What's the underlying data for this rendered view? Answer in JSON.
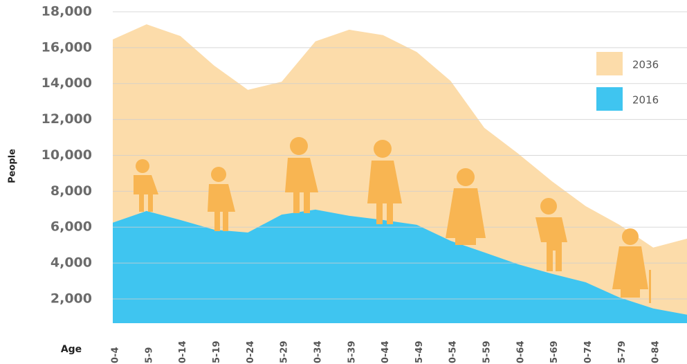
{
  "chart_data": {
    "type": "area",
    "x_label": "Age",
    "y_label": "People",
    "categories": [
      "0-4",
      "5-9",
      "0-14",
      "5-19",
      "0-24",
      "5-29",
      "0-34",
      "5-39",
      "0-44",
      "5-49",
      "0-54",
      "5-59",
      "0-64",
      "5-69",
      "0-74",
      "5-79",
      "0-84",
      null
    ],
    "series": [
      {
        "name": "2036",
        "color": "#fcdcaa",
        "values": [
          16460,
          17300,
          16650,
          15000,
          13650,
          14100,
          16350,
          17000,
          16700,
          15760,
          14150,
          11530,
          10100,
          8560,
          7170,
          6130,
          4860,
          5360
        ]
      },
      {
        "name": "2016",
        "color": "#3fc5f0",
        "values": [
          6250,
          6900,
          6400,
          5860,
          5700,
          6700,
          6980,
          6630,
          6400,
          6130,
          5240,
          4590,
          3930,
          3400,
          2930,
          2080,
          1470,
          1120
        ]
      }
    ],
    "ylim": [
      650,
      18000
    ],
    "yticks": [
      {
        "value": 2000,
        "label": "2,000"
      },
      {
        "value": 4000,
        "label": "4,000"
      },
      {
        "value": 6000,
        "label": "6,000"
      },
      {
        "value": 8000,
        "label": "8,000"
      },
      {
        "value": 10000,
        "label": "10,000"
      },
      {
        "value": 12000,
        "label": "12,000"
      },
      {
        "value": 14000,
        "label": "14,000"
      },
      {
        "value": 16000,
        "label": "16,000"
      },
      {
        "value": 18000,
        "label": "18,000"
      }
    ],
    "grid": true,
    "legend": "upper right"
  }
}
